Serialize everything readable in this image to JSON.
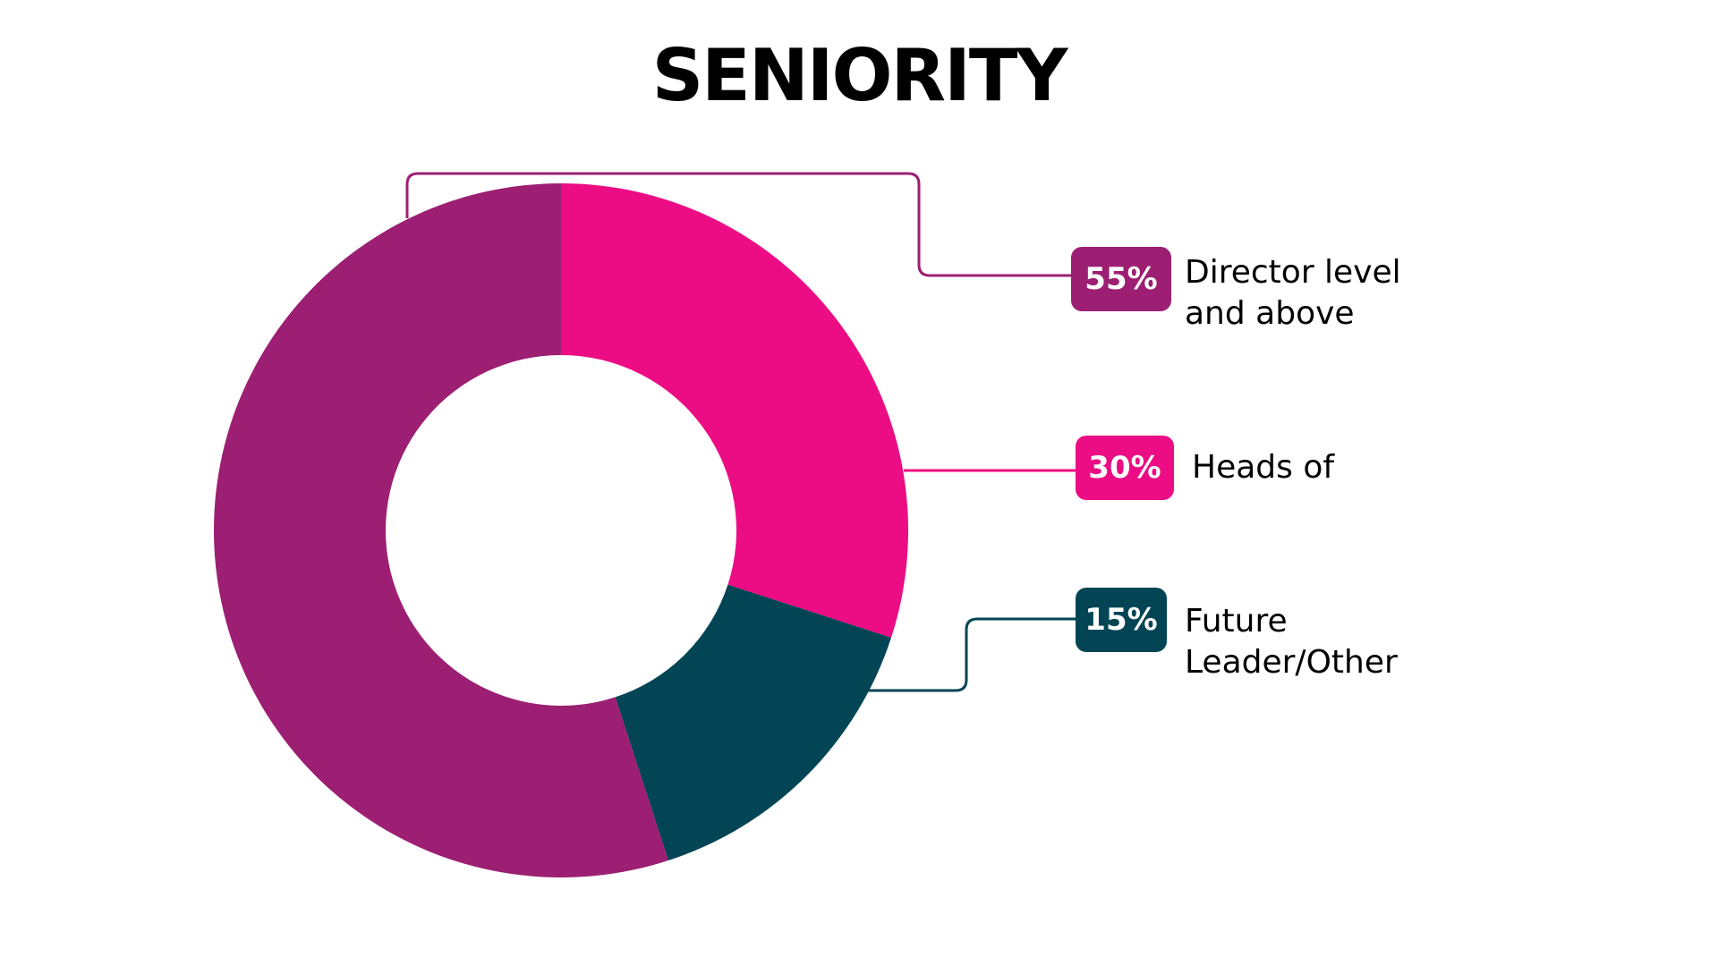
{
  "chart_data": {
    "type": "pie",
    "title": "SENIORITY",
    "donut": true,
    "slices": [
      {
        "label": "Director level and above",
        "label_lines": [
          "Director level",
          "and above"
        ],
        "value": 55,
        "display": "55%",
        "color": "#9c1f73"
      },
      {
        "label": "Heads of",
        "label_lines": [
          "Heads of"
        ],
        "value": 30,
        "display": "30%",
        "color": "#ec0c84"
      },
      {
        "label": "Future Leader/Other",
        "label_lines": [
          "Future",
          "Leader/Other"
        ],
        "value": 15,
        "display": "15%",
        "color": "#034554"
      }
    ]
  }
}
